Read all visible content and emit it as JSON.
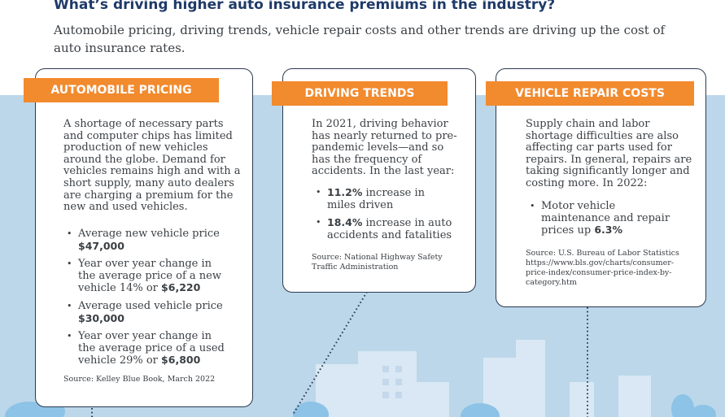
{
  "headline": "What’s driving higher auto insurance premiums in the industry?",
  "intro": "Automobile pricing, driving trends, vehicle repair costs and other trends are driving up the cost of auto insurance rates.",
  "colors": {
    "accent": "#f28a2e",
    "navy": "#1f3a68",
    "sky": "#bcd7ea",
    "building": "#d9e8f4"
  },
  "cards": {
    "pricing": {
      "title": "AUTOMOBILE PRICING",
      "body": "A shortage of necessary parts and computer chips has limited production of new vehicles around the globe. Demand for vehicles remains high and with a short supply, many auto dealers are charging a premium for the new and used vehicles.",
      "bullets": [
        {
          "text": "Average new vehicle price ",
          "highlight": "$47,000"
        },
        {
          "text": "Year over year change in the average price of a new vehicle 14% or ",
          "highlight": "$6,220"
        },
        {
          "text": "Average used vehicle price ",
          "highlight": "$30,000"
        },
        {
          "text": "Year over year change in the average price of a used vehicle 29% or ",
          "highlight": "$6,800"
        }
      ],
      "source": "Source: Kelley Blue Book, March 2022"
    },
    "driving": {
      "title": "DRIVING TRENDS",
      "body": "In 2021, driving behavior has nearly returned to pre-pandemic levels—and so has the frequency of accidents. In the last year:",
      "bullets": [
        {
          "highlight": "11.2%",
          "text": " increase in miles driven"
        },
        {
          "highlight": "18.4%",
          "text": " increase in auto accidents and fatalities"
        }
      ],
      "source": "Source: National Highway Safety Traffic Administration"
    },
    "repair": {
      "title": "VEHICLE REPAIR COSTS",
      "body": "Supply chain and labor shortage difficulties are also affecting car parts used for repairs. In general, repairs are taking significantly longer and costing more. In 2022:",
      "bullets": [
        {
          "text": "Motor vehicle maintenance and repair prices up ",
          "highlight": "6.3%"
        }
      ],
      "source": "Source: U.S. Bureau of Labor Statistics https://www.bls.gov/charts/consumer-price-index/consumer-price-index-by-category.htm"
    }
  }
}
